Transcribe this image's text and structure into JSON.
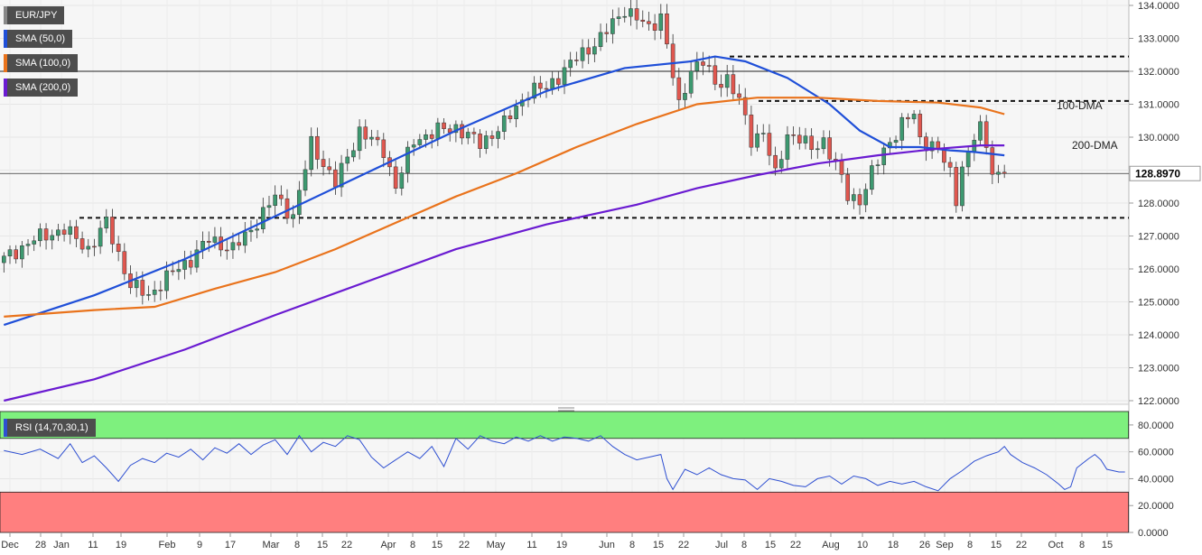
{
  "colors": {
    "bull": "#3d9970",
    "bear": "#e0574f",
    "sma50": "#1f4fd8",
    "sma100": "#e9731c",
    "sma200": "#6a1bd1",
    "rsi": "#2e4fd1",
    "overbought_zone": "#7ef07e",
    "oversold_zone": "#ff7f7f"
  },
  "legend": {
    "symbol": "EUR/JPY",
    "sma50": "SMA (50,0)",
    "sma100": "SMA (100,0)",
    "sma200": "SMA (200,0)",
    "rsi": "RSI (14,70,30,1)"
  },
  "annotations": {
    "dma100": "100-DMA",
    "dma200": "200-DMA"
  },
  "last_price_label": "128.8970",
  "chart_data": [
    {
      "type": "candlestick",
      "ylim": [
        122.0,
        134.0
      ],
      "y_ticks": [
        "122.0000",
        "123.0000",
        "124.0000",
        "125.0000",
        "126.0000",
        "127.0000",
        "128.0000",
        "129.0000",
        "130.0000",
        "131.0000",
        "132.0000",
        "133.0000",
        "134.0000"
      ],
      "x_ticks": [
        "Dec",
        "28",
        "Jan",
        "11",
        "19",
        "Feb",
        "9",
        "17",
        "Mar",
        "8",
        "15",
        "22",
        "Apr",
        "8",
        "15",
        "22",
        "May",
        "11",
        "19",
        "Jun",
        "8",
        "15",
        "22",
        "Jul",
        "8",
        "15",
        "22",
        "Aug",
        "10",
        "18",
        "26",
        "Sep",
        "8",
        "15",
        "22",
        "Oct",
        "8",
        "15"
      ],
      "last_price": 128.897,
      "horizontal_levels": [
        132.45,
        131.1,
        127.55
      ],
      "solid_reference_levels": [
        132.0
      ],
      "path_anchors": [
        [
          0,
          126.3
        ],
        [
          5,
          126.9
        ],
        [
          10,
          127.2
        ],
        [
          14,
          126.6
        ],
        [
          17,
          127.4
        ],
        [
          21,
          125.5
        ],
        [
          24,
          125.2
        ],
        [
          28,
          125.9
        ],
        [
          31,
          126.3
        ],
        [
          34,
          126.9
        ],
        [
          38,
          126.6
        ],
        [
          41,
          127.2
        ],
        [
          45,
          128.2
        ],
        [
          48,
          127.6
        ],
        [
          51,
          129.8
        ],
        [
          55,
          128.6
        ],
        [
          59,
          130.2
        ],
        [
          63,
          129.6
        ],
        [
          65,
          128.5
        ],
        [
          68,
          129.9
        ],
        [
          72,
          130.2
        ],
        [
          75,
          130.3
        ],
        [
          79,
          129.8
        ],
        [
          83,
          130.4
        ],
        [
          87,
          131.4
        ],
        [
          90,
          131.5
        ],
        [
          95,
          132.4
        ],
        [
          99,
          133.0
        ],
        [
          103,
          133.9
        ],
        [
          105,
          133.6
        ],
        [
          107,
          133.3
        ],
        [
          109,
          133.7
        ],
        [
          110,
          132.8
        ],
        [
          112,
          130.9
        ],
        [
          114,
          132.1
        ],
        [
          116,
          132.3
        ],
        [
          118,
          131.6
        ],
        [
          120,
          131.8
        ],
        [
          122,
          131.1
        ],
        [
          124,
          129.9
        ],
        [
          126,
          130.2
        ],
        [
          128,
          128.8
        ],
        [
          130,
          130.1
        ],
        [
          132,
          130.0
        ],
        [
          134,
          129.6
        ],
        [
          136,
          129.9
        ],
        [
          138,
          129.2
        ],
        [
          140,
          128.2
        ],
        [
          142,
          128.1
        ],
        [
          144,
          128.9
        ],
        [
          146,
          129.6
        ],
        [
          149,
          130.4
        ],
        [
          151,
          130.7
        ],
        [
          152,
          129.9
        ],
        [
          154,
          129.8
        ],
        [
          156,
          129.3
        ],
        [
          157,
          128.9
        ],
        [
          158,
          128.1
        ],
        [
          159,
          129.2
        ],
        [
          160,
          129.4
        ],
        [
          161,
          130.0
        ],
        [
          162,
          130.3
        ],
        [
          163,
          129.7
        ],
        [
          164,
          129.1
        ],
        [
          165,
          128.8
        ],
        [
          166,
          128.9
        ]
      ],
      "series": [
        {
          "name": "SMA (50,0)",
          "values": [
            [
              0,
              124.3
            ],
            [
              15,
              125.2
            ],
            [
              30,
              126.3
            ],
            [
              45,
              127.6
            ],
            [
              60,
              128.9
            ],
            [
              75,
              130.2
            ],
            [
              90,
              131.4
            ],
            [
              103,
              132.1
            ],
            [
              114,
              132.3
            ],
            [
              118,
              132.45
            ],
            [
              123,
              132.3
            ],
            [
              130,
              131.8
            ],
            [
              137,
              131.0
            ],
            [
              142,
              130.2
            ],
            [
              147,
              129.7
            ],
            [
              152,
              129.7
            ],
            [
              157,
              129.6
            ],
            [
              161,
              129.55
            ],
            [
              166,
              129.45
            ]
          ]
        },
        {
          "name": "SMA (100,0)",
          "values": [
            [
              0,
              124.55
            ],
            [
              15,
              124.75
            ],
            [
              25,
              124.85
            ],
            [
              35,
              125.4
            ],
            [
              45,
              125.9
            ],
            [
              55,
              126.6
            ],
            [
              65,
              127.4
            ],
            [
              75,
              128.2
            ],
            [
              85,
              128.9
            ],
            [
              95,
              129.7
            ],
            [
              105,
              130.4
            ],
            [
              115,
              131.0
            ],
            [
              125,
              131.2
            ],
            [
              135,
              131.2
            ],
            [
              145,
              131.1
            ],
            [
              155,
              131.05
            ],
            [
              162,
              130.9
            ],
            [
              166,
              130.7
            ]
          ]
        },
        {
          "name": "SMA (200,0)",
          "values": [
            [
              0,
              122.0
            ],
            [
              15,
              122.65
            ],
            [
              30,
              123.55
            ],
            [
              45,
              124.6
            ],
            [
              60,
              125.6
            ],
            [
              75,
              126.6
            ],
            [
              90,
              127.35
            ],
            [
              105,
              127.95
            ],
            [
              115,
              128.45
            ],
            [
              125,
              128.85
            ],
            [
              135,
              129.2
            ],
            [
              145,
              129.45
            ],
            [
              155,
              129.65
            ],
            [
              162,
              129.75
            ],
            [
              166,
              129.75
            ]
          ]
        }
      ]
    },
    {
      "type": "line",
      "ylim": [
        0,
        90
      ],
      "y_ticks": [
        "0.0000",
        "20.0000",
        "40.0000",
        "60.0000",
        "80.0000"
      ],
      "overbought": 70,
      "oversold": 30,
      "series": [
        {
          "name": "RSI (14,70,30,1)",
          "values": [
            [
              0,
              61
            ],
            [
              3,
              58
            ],
            [
              6,
              62
            ],
            [
              9,
              55
            ],
            [
              11,
              66
            ],
            [
              13,
              52
            ],
            [
              15,
              57
            ],
            [
              17,
              48
            ],
            [
              19,
              38
            ],
            [
              21,
              50
            ],
            [
              23,
              55
            ],
            [
              25,
              52
            ],
            [
              27,
              59
            ],
            [
              29,
              56
            ],
            [
              31,
              62
            ],
            [
              33,
              54
            ],
            [
              35,
              63
            ],
            [
              37,
              59
            ],
            [
              39,
              66
            ],
            [
              41,
              58
            ],
            [
              43,
              65
            ],
            [
              45,
              69
            ],
            [
              47,
              58
            ],
            [
              49,
              72
            ],
            [
              51,
              60
            ],
            [
              53,
              67
            ],
            [
              55,
              64
            ],
            [
              57,
              72
            ],
            [
              59,
              69
            ],
            [
              61,
              56
            ],
            [
              63,
              48
            ],
            [
              65,
              54
            ],
            [
              67,
              60
            ],
            [
              69,
              55
            ],
            [
              71,
              64
            ],
            [
              73,
              49
            ],
            [
              75,
              70
            ],
            [
              77,
              62
            ],
            [
              79,
              72
            ],
            [
              81,
              68
            ],
            [
              83,
              66
            ],
            [
              85,
              71
            ],
            [
              87,
              68
            ],
            [
              89,
              72
            ],
            [
              91,
              68
            ],
            [
              93,
              71
            ],
            [
              95,
              70
            ],
            [
              97,
              68
            ],
            [
              99,
              72
            ],
            [
              101,
              64
            ],
            [
              103,
              58
            ],
            [
              105,
              54
            ],
            [
              107,
              56
            ],
            [
              109,
              58
            ],
            [
              110,
              40
            ],
            [
              111,
              32
            ],
            [
              113,
              47
            ],
            [
              115,
              43
            ],
            [
              117,
              48
            ],
            [
              119,
              43
            ],
            [
              121,
              40
            ],
            [
              123,
              39
            ],
            [
              125,
              32
            ],
            [
              127,
              40
            ],
            [
              129,
              38
            ],
            [
              131,
              35
            ],
            [
              133,
              34
            ],
            [
              135,
              40
            ],
            [
              137,
              42
            ],
            [
              139,
              36
            ],
            [
              141,
              42
            ],
            [
              143,
              40
            ],
            [
              145,
              35
            ],
            [
              147,
              38
            ],
            [
              149,
              36
            ],
            [
              151,
              38
            ],
            [
              153,
              34
            ],
            [
              155,
              31
            ],
            [
              157,
              40
            ],
            [
              159,
              46
            ],
            [
              161,
              53
            ],
            [
              163,
              57
            ],
            [
              165,
              60
            ],
            [
              166,
              64
            ],
            [
              167,
              58
            ],
            [
              169,
              52
            ],
            [
              171,
              48
            ],
            [
              173,
              43
            ],
            [
              175,
              36
            ],
            [
              176,
              32
            ],
            [
              177,
              34
            ],
            [
              178,
              48
            ],
            [
              180,
              55
            ],
            [
              181,
              58
            ],
            [
              182,
              54
            ],
            [
              183,
              47
            ],
            [
              185,
              45
            ],
            [
              186,
              45
            ]
          ]
        }
      ]
    }
  ]
}
